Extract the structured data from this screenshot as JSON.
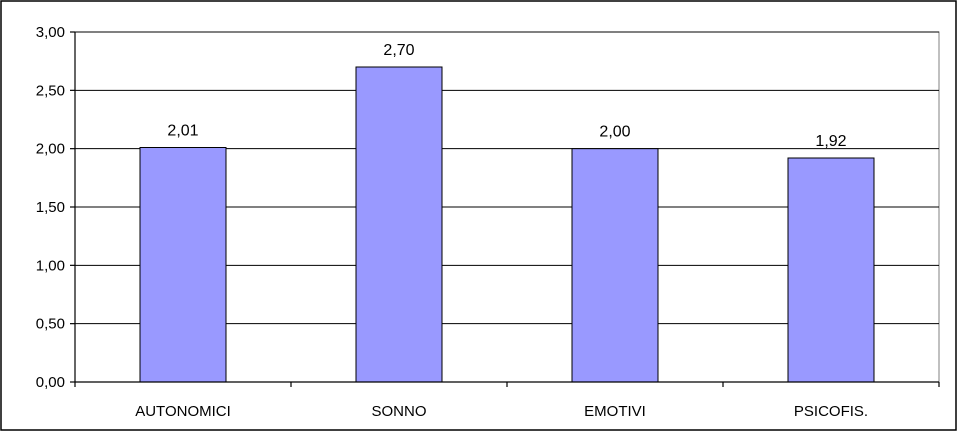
{
  "chart_data": {
    "type": "bar",
    "categories": [
      "AUTONOMICI",
      "SONNO",
      "EMOTIVI",
      "PSICOFIS."
    ],
    "values": [
      2.01,
      2.7,
      2.0,
      1.92
    ],
    "value_labels": [
      "2,01",
      "2,70",
      "2,00",
      "1,92"
    ],
    "ylim": [
      0,
      3
    ],
    "yticks": [
      0,
      0.5,
      1,
      1.5,
      2,
      2.5,
      3
    ],
    "ytick_labels": [
      "0,00",
      "0,50",
      "1,00",
      "1,50",
      "2,00",
      "2,50",
      "3,00"
    ],
    "title": "",
    "xlabel": "",
    "ylabel": "",
    "grid": true,
    "legend": "none",
    "bar_color": "#9999FF"
  }
}
